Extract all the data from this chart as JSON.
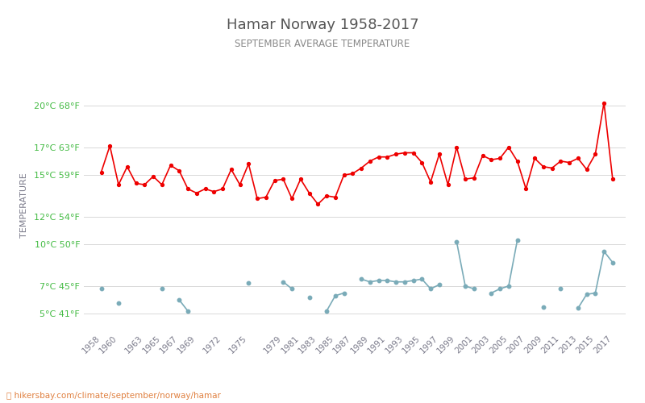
{
  "title": "Hamar Norway 1958-2017",
  "subtitle": "SEPTEMBER AVERAGE TEMPERATURE",
  "ylabel": "TEMPERATURE",
  "footer": "hikersbay.com/climate/september/norway/hamar",
  "title_color": "#555555",
  "subtitle_color": "#888888",
  "ylabel_color": "#7a7a8a",
  "ytick_color": "#44bb44",
  "ytick_labels_celsius": [
    "5°C 41°F",
    "7°C 45°F",
    "10°C 50°F",
    "12°C 54°F",
    "15°C 59°F",
    "17°C 63°F",
    "20°C 68°F"
  ],
  "ytick_values": [
    5,
    7,
    10,
    12,
    15,
    17,
    20
  ],
  "ylim": [
    3.8,
    21.8
  ],
  "background_color": "#ffffff",
  "grid_color": "#d8d8d8",
  "day_color": "#ee0000",
  "night_color": "#7aabb8",
  "years": [
    1958,
    1959,
    1960,
    1961,
    1962,
    1963,
    1964,
    1965,
    1966,
    1967,
    1968,
    1969,
    1970,
    1971,
    1972,
    1973,
    1974,
    1975,
    1976,
    1977,
    1978,
    1979,
    1980,
    1981,
    1982,
    1983,
    1984,
    1985,
    1986,
    1987,
    1988,
    1989,
    1990,
    1991,
    1992,
    1993,
    1994,
    1995,
    1996,
    1997,
    1998,
    1999,
    2000,
    2001,
    2002,
    2003,
    2004,
    2005,
    2006,
    2007,
    2008,
    2009,
    2010,
    2011,
    2012,
    2013,
    2014,
    2015,
    2016,
    2017
  ],
  "day_temps": [
    15.2,
    17.1,
    14.3,
    15.6,
    14.4,
    14.3,
    14.9,
    14.3,
    15.7,
    15.3,
    14.0,
    13.7,
    14.0,
    13.8,
    14.0,
    15.4,
    14.3,
    15.8,
    13.3,
    13.4,
    14.6,
    14.7,
    13.3,
    14.7,
    13.7,
    12.9,
    13.5,
    13.4,
    15.0,
    15.1,
    15.5,
    16.0,
    16.3,
    16.3,
    16.5,
    16.6,
    16.6,
    15.9,
    14.5,
    16.5,
    14.3,
    17.0,
    14.7,
    14.8,
    16.4,
    16.1,
    16.2,
    17.0,
    16.0,
    14.0,
    16.2,
    15.6,
    15.5,
    16.0,
    15.9,
    16.2,
    15.4,
    16.5,
    20.2,
    14.7
  ],
  "night_temps": [
    6.8,
    null,
    5.8,
    null,
    null,
    null,
    null,
    6.8,
    null,
    6.0,
    5.2,
    null,
    null,
    null,
    null,
    null,
    null,
    7.2,
    null,
    null,
    null,
    7.3,
    6.8,
    null,
    6.2,
    null,
    5.2,
    6.3,
    6.5,
    null,
    7.5,
    7.3,
    7.4,
    7.4,
    7.3,
    7.3,
    7.4,
    7.5,
    6.8,
    7.1,
    null,
    10.2,
    7.0,
    6.8,
    null,
    6.5,
    6.8,
    7.0,
    10.3,
    null,
    null,
    5.5,
    null,
    6.8,
    null,
    5.4,
    6.4,
    6.5,
    9.5,
    8.7
  ],
  "xtick_years": [
    1958,
    1960,
    1963,
    1965,
    1967,
    1969,
    1972,
    1975,
    1979,
    1981,
    1983,
    1985,
    1987,
    1989,
    1991,
    1993,
    1995,
    1997,
    1999,
    2001,
    2003,
    2005,
    2007,
    2009,
    2011,
    2013,
    2015,
    2017
  ],
  "xlim": [
    1956.0,
    2018.5
  ]
}
